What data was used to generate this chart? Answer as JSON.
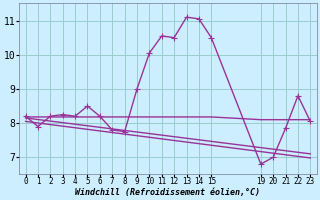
{
  "background_color": "#cceeff",
  "grid_color": "#99cccc",
  "line_color": "#993399",
  "xlabel": "Windchill (Refroidissement éolien,°C)",
  "xlim": [
    -0.5,
    23.5
  ],
  "ylim": [
    6.5,
    11.5
  ],
  "yticks": [
    7,
    8,
    9,
    10,
    11
  ],
  "xticks": [
    0,
    1,
    2,
    3,
    4,
    5,
    6,
    7,
    8,
    9,
    10,
    11,
    12,
    13,
    14,
    15,
    19,
    20,
    21,
    22,
    23
  ],
  "xtick_labels": [
    "0",
    "1",
    "2",
    "3",
    "4",
    "5",
    "6",
    "7",
    "8",
    "9",
    "10",
    "11",
    "12",
    "13",
    "14",
    "15",
    "19",
    "20",
    "21",
    "22",
    "23"
  ],
  "series1_x": [
    0,
    1,
    2,
    3,
    4,
    5,
    6,
    7,
    8,
    9,
    10,
    11,
    12,
    13,
    14,
    15,
    19,
    20,
    21,
    22,
    23
  ],
  "series1_y": [
    8.2,
    7.9,
    8.2,
    8.25,
    8.2,
    8.5,
    8.2,
    7.8,
    7.75,
    9.0,
    10.05,
    10.55,
    10.5,
    11.1,
    11.05,
    10.5,
    6.8,
    7.0,
    7.85,
    8.8,
    8.05
  ],
  "series2_x": [
    0,
    15,
    19,
    23
  ],
  "series2_y": [
    8.18,
    8.18,
    8.1,
    8.1
  ],
  "series3_x": [
    0,
    23
  ],
  "series3_y": [
    8.15,
    7.1
  ],
  "series4_x": [
    0,
    23
  ],
  "series4_y": [
    8.05,
    6.98
  ],
  "marker": "+",
  "markersize": 4,
  "linewidth": 1.0,
  "xlabel_fontsize": 6.0,
  "xtick_fontsize": 5.5,
  "ytick_fontsize": 7.0
}
